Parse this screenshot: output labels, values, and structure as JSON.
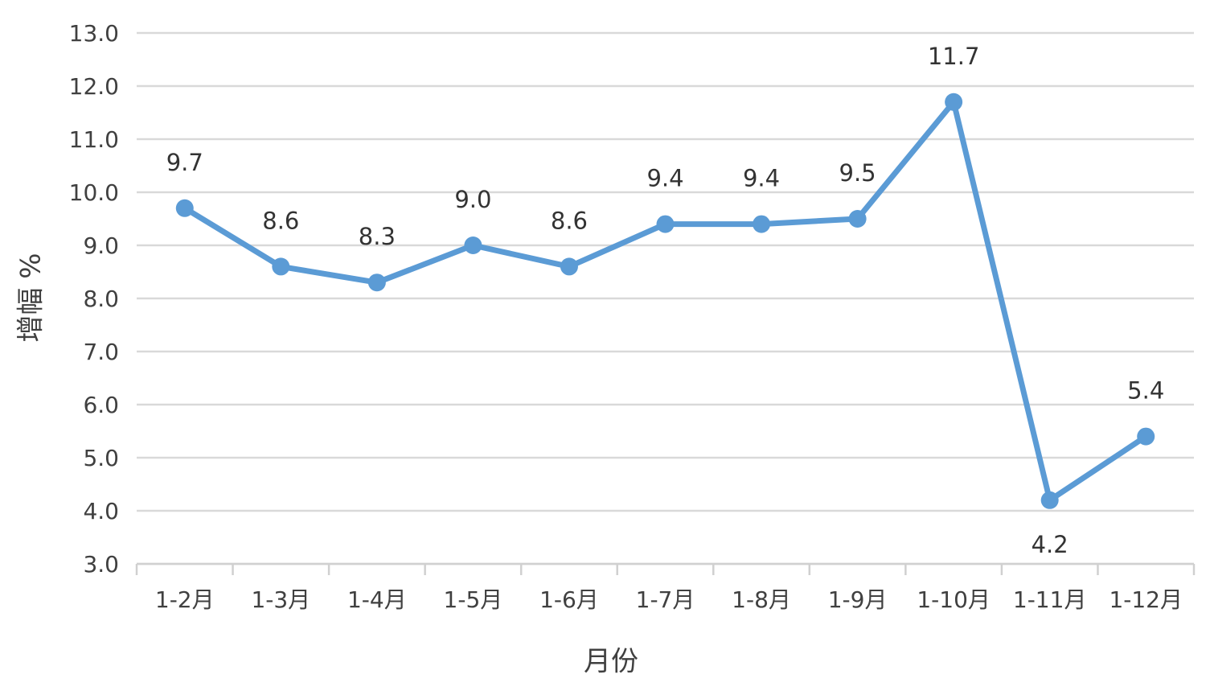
{
  "chart_data": {
    "type": "line",
    "x_label": "月份",
    "y_label": "增幅 %",
    "categories": [
      "1-2月",
      "1-3月",
      "1-4月",
      "1-5月",
      "1-6月",
      "1-7月",
      "1-8月",
      "1-9月",
      "1-10月",
      "1-11月",
      "1-12月"
    ],
    "values": [
      9.7,
      8.6,
      8.3,
      9.0,
      8.6,
      9.4,
      9.4,
      9.5,
      11.7,
      4.2,
      5.4
    ],
    "value_labels": [
      "9.7",
      "8.6",
      "8.3",
      "9.0",
      "8.6",
      "9.4",
      "9.4",
      "9.5",
      "11.7",
      "4.2",
      "5.4"
    ],
    "color": "#5b9bd5",
    "ylim": [
      3,
      13
    ],
    "yticks": [
      {
        "value": 3,
        "label": "3.0"
      },
      {
        "value": 4,
        "label": "4.0"
      },
      {
        "value": 5,
        "label": "5.0"
      },
      {
        "value": 6,
        "label": "6.0"
      },
      {
        "value": 7,
        "label": "7.0"
      },
      {
        "value": 8,
        "label": "8.0"
      },
      {
        "value": 9,
        "label": "9.0"
      },
      {
        "value": 10,
        "label": "10.0"
      },
      {
        "value": 11,
        "label": "11.0"
      },
      {
        "value": 12,
        "label": "12.0"
      },
      {
        "value": 13,
        "label": "13.0"
      }
    ],
    "grid": true
  }
}
